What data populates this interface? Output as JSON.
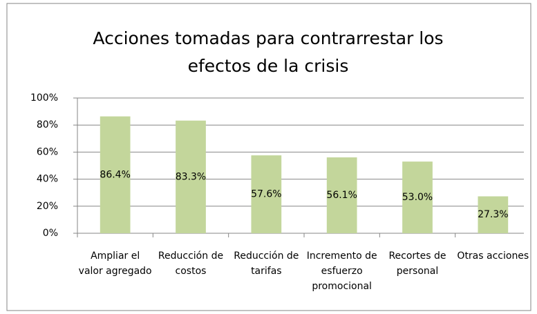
{
  "chart_data": {
    "type": "bar",
    "title": "Acciones tomadas para contrarrestar los efectos de la crisis",
    "categories": [
      "Ampliar el valor agregado",
      "Reducción de costos",
      "Reducción de tarifas",
      "Incremento de esfuerzo promocional",
      "Recortes de personal",
      "Otras acciones"
    ],
    "values": [
      86.4,
      83.3,
      57.6,
      56.1,
      53.0,
      27.3
    ],
    "value_labels": [
      "86.4%",
      "83.3%",
      "57.6%",
      "56.1%",
      "53.0%",
      "27.3%"
    ],
    "color": "#c3d69b",
    "ylim": [
      0,
      100
    ],
    "yticks": [
      {
        "value": 0,
        "label": "0%"
      },
      {
        "value": 20,
        "label": "20%"
      },
      {
        "value": 40,
        "label": "40%"
      },
      {
        "value": 60,
        "label": "60%"
      },
      {
        "value": 80,
        "label": "80%"
      },
      {
        "value": 100,
        "label": "100%"
      }
    ],
    "grid": true
  }
}
